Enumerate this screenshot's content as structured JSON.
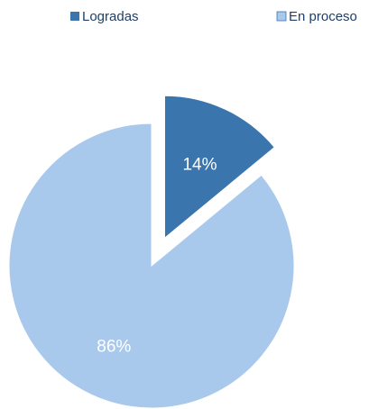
{
  "chart_data": {
    "type": "pie",
    "categories": [
      "Logradas",
      "En proceso"
    ],
    "values": [
      14,
      86
    ],
    "value_labels": [
      "14%",
      "86%"
    ],
    "colors": [
      "#3a75ae",
      "#a9c9ec"
    ],
    "exploded": [
      true,
      false
    ],
    "legend_position": "top"
  },
  "legend": {
    "items": [
      {
        "label": "Logradas"
      },
      {
        "label": "En proceso"
      }
    ]
  }
}
